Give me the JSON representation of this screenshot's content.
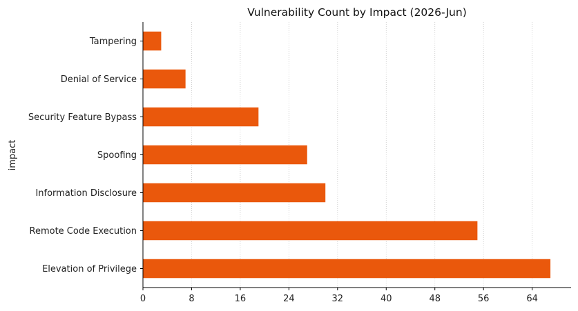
{
  "chart_data": {
    "type": "bar",
    "orientation": "horizontal",
    "title": "Vulnerability Count by Impact (2026-Jun)",
    "xlabel": "",
    "ylabel": "impact",
    "categories": [
      "Elevation of Privilege",
      "Remote Code Execution",
      "Information Disclosure",
      "Spoofing",
      "Security Feature Bypass",
      "Denial of Service",
      "Tampering"
    ],
    "values": [
      67,
      55,
      30,
      27,
      19,
      7,
      3
    ],
    "xlim": [
      0,
      70.4
    ],
    "xticks": [
      0,
      8,
      16,
      24,
      32,
      40,
      48,
      56,
      64
    ],
    "grid": "x-dotted",
    "legend": "none",
    "bar_color": "#ea580c",
    "grid_color": "#c8c8c8"
  }
}
